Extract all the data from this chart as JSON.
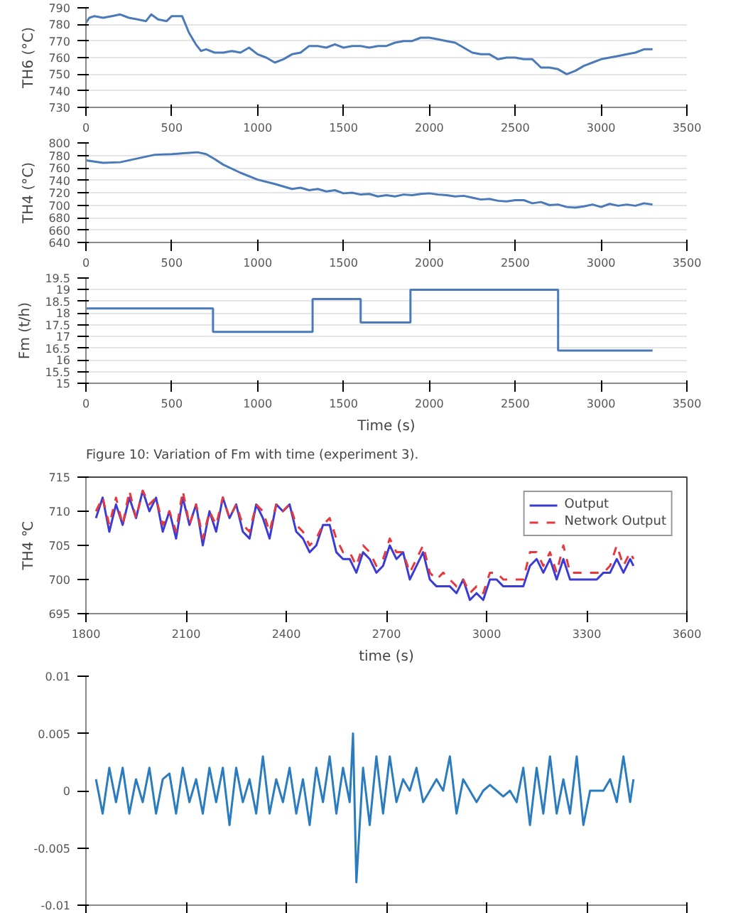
{
  "chart_data": [
    {
      "type": "line",
      "ylabel": "TH6 (°C)",
      "xlim": [
        0,
        3500
      ],
      "xticks": [
        0,
        500,
        1000,
        1500,
        2000,
        2500,
        3000,
        3500
      ],
      "ylim": [
        730,
        790
      ],
      "yticks": [
        730,
        740,
        750,
        760,
        770,
        780,
        790
      ],
      "grid": "y",
      "x": [
        0,
        20,
        50,
        100,
        150,
        200,
        250,
        300,
        350,
        380,
        420,
        470,
        500,
        560,
        600,
        640,
        670,
        700,
        750,
        800,
        850,
        900,
        950,
        1000,
        1050,
        1100,
        1150,
        1200,
        1250,
        1300,
        1350,
        1400,
        1450,
        1500,
        1550,
        1600,
        1650,
        1700,
        1750,
        1800,
        1850,
        1900,
        1950,
        2000,
        2050,
        2100,
        2150,
        2200,
        2250,
        2300,
        2350,
        2400,
        2450,
        2500,
        2550,
        2600,
        2650,
        2700,
        2750,
        2800,
        2850,
        2900,
        2950,
        3000,
        3050,
        3100,
        3150,
        3200,
        3250,
        3300
      ],
      "series": [
        {
          "color": "#4a7ab8",
          "values": [
            781,
            784,
            785,
            784,
            785,
            786,
            784,
            783,
            782,
            786,
            783,
            782,
            785,
            785,
            775,
            768,
            764,
            765,
            763,
            763,
            764,
            763,
            766,
            762,
            760,
            757,
            759,
            762,
            763,
            767,
            767,
            766,
            768,
            766,
            767,
            767,
            766,
            767,
            767,
            769,
            770,
            770,
            772,
            772,
            771,
            770,
            769,
            766,
            763,
            762,
            762,
            759,
            760,
            760,
            759,
            759,
            754,
            754,
            753,
            750,
            752,
            755,
            757,
            759,
            760,
            761,
            762,
            763,
            765,
            765
          ]
        }
      ]
    },
    {
      "type": "line",
      "ylabel": "TH4 (°C)",
      "xlim": [
        0,
        3500
      ],
      "xticks": [
        0,
        500,
        1000,
        1500,
        2000,
        2500,
        3000,
        3500
      ],
      "ylim": [
        640,
        800
      ],
      "yticks": [
        640,
        660,
        680,
        700,
        720,
        740,
        760,
        780,
        800
      ],
      "grid": "y",
      "x": [
        0,
        50,
        100,
        200,
        300,
        400,
        500,
        600,
        650,
        700,
        750,
        800,
        900,
        1000,
        1100,
        1150,
        1200,
        1250,
        1300,
        1350,
        1400,
        1450,
        1500,
        1550,
        1600,
        1650,
        1700,
        1750,
        1800,
        1850,
        1900,
        1950,
        2000,
        2050,
        2100,
        2150,
        2200,
        2250,
        2300,
        2350,
        2400,
        2450,
        2500,
        2550,
        2600,
        2650,
        2700,
        2750,
        2800,
        2850,
        2900,
        2950,
        3000,
        3050,
        3100,
        3150,
        3200,
        3250,
        3300
      ],
      "series": [
        {
          "color": "#4a7ab8",
          "values": [
            772,
            770,
            768,
            769,
            775,
            781,
            782,
            784,
            785,
            782,
            774,
            765,
            752,
            741,
            734,
            730,
            726,
            728,
            724,
            726,
            722,
            724,
            719,
            720,
            717,
            718,
            714,
            716,
            714,
            717,
            716,
            718,
            719,
            717,
            716,
            714,
            715,
            712,
            709,
            710,
            707,
            706,
            708,
            708,
            703,
            705,
            700,
            701,
            697,
            696,
            698,
            701,
            697,
            702,
            699,
            701,
            699,
            703,
            701
          ]
        }
      ]
    },
    {
      "type": "step",
      "ylabel": "Fm (t/h)",
      "xlabel": "Time (s)",
      "annotations": [
        "Figure 10: Variation of Fm with time (experiment 3)."
      ],
      "xlim": [
        0,
        3500
      ],
      "xticks": [
        0,
        500,
        1000,
        1500,
        2000,
        2500,
        3000,
        3500
      ],
      "ylim": [
        15,
        19.5
      ],
      "yticks": [
        15,
        15.5,
        16,
        16.5,
        17,
        17.5,
        18,
        18.5,
        19,
        19.5
      ],
      "grid": "y",
      "x": [
        0,
        740,
        1320,
        1600,
        1890,
        2750,
        3300
      ],
      "series": [
        {
          "color": "#4a7ab8",
          "values": [
            18.2,
            17.2,
            18.6,
            17.6,
            19,
            16.4,
            16.4
          ]
        }
      ]
    },
    {
      "type": "line",
      "ylabel": "TH4 ℃",
      "xlabel": "time (s)",
      "xlim": [
        1800,
        3600
      ],
      "xticks": [
        1800,
        2100,
        2400,
        2700,
        3000,
        3300,
        3600
      ],
      "ylim": [
        695,
        715
      ],
      "yticks": [
        695,
        700,
        705,
        710,
        715
      ],
      "grid": false,
      "legend": "top right",
      "x": [
        1830,
        1850,
        1870,
        1890,
        1910,
        1930,
        1950,
        1970,
        1990,
        2010,
        2030,
        2050,
        2070,
        2090,
        2110,
        2130,
        2150,
        2170,
        2190,
        2210,
        2230,
        2250,
        2270,
        2290,
        2310,
        2330,
        2350,
        2370,
        2390,
        2410,
        2430,
        2450,
        2470,
        2490,
        2510,
        2530,
        2550,
        2570,
        2590,
        2610,
        2630,
        2650,
        2670,
        2690,
        2710,
        2730,
        2750,
        2770,
        2790,
        2810,
        2830,
        2850,
        2870,
        2890,
        2910,
        2930,
        2950,
        2970,
        2990,
        3010,
        3030,
        3050,
        3070,
        3090,
        3110,
        3130,
        3150,
        3170,
        3190,
        3210,
        3230,
        3250,
        3270,
        3290,
        3310,
        3330,
        3350,
        3370,
        3390,
        3410,
        3430,
        3440
      ],
      "series": [
        {
          "name": "Output",
          "color": "#3b3bd6",
          "line_style": "solid",
          "values": [
            709,
            712,
            707,
            711,
            708,
            712,
            709,
            713,
            710,
            712,
            707,
            710,
            706,
            712,
            708,
            711,
            705,
            710,
            707,
            712,
            709,
            711,
            707,
            706,
            711,
            709,
            706,
            711,
            710,
            711,
            707,
            706,
            704,
            705,
            708,
            708,
            704,
            703,
            703,
            701,
            704,
            703,
            701,
            702,
            705,
            703,
            704,
            700,
            702,
            704,
            700,
            699,
            699,
            699,
            698,
            700,
            697,
            698,
            697,
            700,
            700,
            699,
            699,
            699,
            699,
            702,
            703,
            701,
            703,
            700,
            703,
            700,
            700,
            700,
            700,
            700,
            701,
            701,
            703,
            701,
            703,
            702
          ]
        },
        {
          "name": "Network Output",
          "color": "#e8383d",
          "line_style": "dashed",
          "values": [
            710,
            712,
            708,
            712,
            708,
            713,
            709,
            713,
            711,
            712,
            708,
            710,
            707,
            713,
            708,
            711,
            706,
            710,
            708,
            712,
            709,
            711,
            708,
            707,
            711,
            710,
            707,
            711,
            710,
            711,
            708,
            707,
            705,
            706,
            708,
            709,
            706,
            704,
            704,
            702,
            705,
            704,
            702,
            703,
            706,
            704,
            704,
            701,
            703,
            705,
            701,
            700,
            701,
            700,
            699,
            700,
            698,
            699,
            698,
            701,
            701,
            700,
            700,
            700,
            700,
            704,
            704,
            702,
            704,
            701,
            705,
            701,
            701,
            701,
            701,
            701,
            701,
            702,
            705,
            702,
            704,
            703
          ]
        }
      ]
    },
    {
      "type": "line",
      "xlim": [
        1800,
        3600
      ],
      "xticks": [
        {
          "value": 1800,
          "label": null
        },
        {
          "value": 2100,
          "label": null
        },
        {
          "value": 2400,
          "label": null
        },
        {
          "value": 2700,
          "label": null
        },
        {
          "value": 3000,
          "label": null
        },
        {
          "value": 3300,
          "label": null
        },
        {
          "value": 3600,
          "label": null
        }
      ],
      "ylim": [
        -0.01,
        0.01
      ],
      "yticks": [
        -0.01,
        -0.005,
        0,
        0.005,
        0.01
      ],
      "grid": false,
      "tick_labels": "y",
      "x": [
        1830,
        1850,
        1870,
        1890,
        1910,
        1930,
        1950,
        1970,
        1990,
        2010,
        2030,
        2050,
        2070,
        2090,
        2110,
        2130,
        2150,
        2170,
        2190,
        2210,
        2230,
        2250,
        2270,
        2290,
        2310,
        2330,
        2350,
        2370,
        2390,
        2410,
        2430,
        2450,
        2470,
        2490,
        2510,
        2530,
        2550,
        2570,
        2590,
        2600,
        2610,
        2630,
        2650,
        2670,
        2690,
        2710,
        2730,
        2750,
        2770,
        2790,
        2810,
        2830,
        2850,
        2870,
        2890,
        2910,
        2930,
        2950,
        2970,
        2990,
        3010,
        3030,
        3050,
        3070,
        3090,
        3110,
        3130,
        3150,
        3170,
        3190,
        3210,
        3230,
        3250,
        3270,
        3290,
        3310,
        3330,
        3350,
        3370,
        3390,
        3410,
        3430,
        3440
      ],
      "series": [
        {
          "color": "#2b7bbf",
          "values": [
            0.001,
            -0.002,
            0.002,
            -0.001,
            0.002,
            -0.002,
            0.001,
            -0.001,
            0.002,
            -0.002,
            0.001,
            0.0015,
            -0.002,
            0.002,
            -0.001,
            0.001,
            -0.002,
            0.002,
            -0.001,
            0.002,
            -0.003,
            0.002,
            -0.001,
            0.001,
            -0.002,
            0.003,
            -0.002,
            0.001,
            -0.001,
            0.002,
            -0.002,
            0.001,
            -0.003,
            0.002,
            -0.001,
            0.003,
            -0.002,
            0.002,
            -0.001,
            0.005,
            -0.008,
            0.002,
            -0.003,
            0.003,
            -0.002,
            0.003,
            -0.001,
            0.001,
            0,
            0.002,
            -0.001,
            0,
            0.001,
            0,
            0.003,
            -0.002,
            0.001,
            0,
            -0.001,
            0,
            0.0005,
            0,
            -0.0005,
            0,
            -0.001,
            0.002,
            -0.003,
            0.002,
            -0.002,
            0.003,
            -0.002,
            0.001,
            -0.002,
            0.003,
            -0.003,
            0,
            0,
            0,
            0.001,
            -0.001,
            0.003,
            -0.001,
            0.001
          ]
        }
      ]
    }
  ]
}
